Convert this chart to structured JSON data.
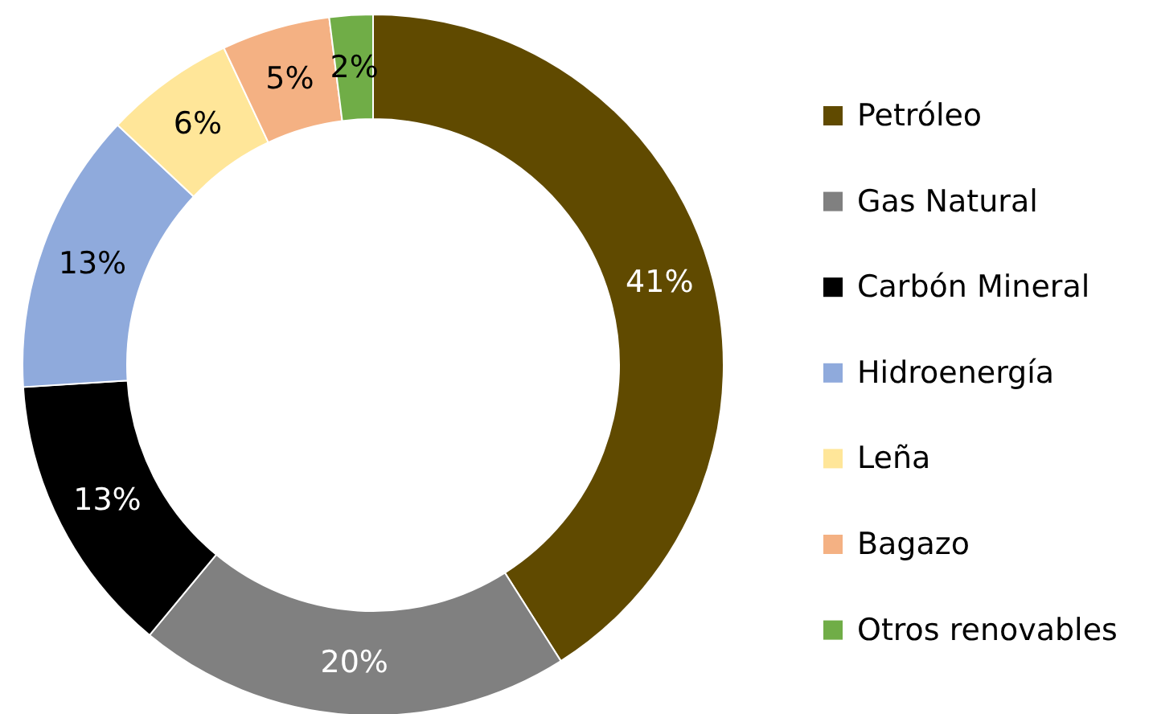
{
  "chart_data": {
    "type": "donut",
    "categories": [
      "Petróleo",
      "Gas Natural",
      "Carbón Mineral",
      "Hidroenergía",
      "Leña",
      "Bagazo",
      "Otros renovables"
    ],
    "values": [
      41,
      20,
      13,
      13,
      6,
      5,
      2
    ],
    "colors": [
      "#604a00",
      "#808080",
      "#000000",
      "#8faadc",
      "#ffe699",
      "#f4b183",
      "#70ad47"
    ],
    "value_labels": [
      "41%",
      "20%",
      "13%",
      "13%",
      "6%",
      "5%",
      "2%"
    ],
    "legend": "right"
  }
}
